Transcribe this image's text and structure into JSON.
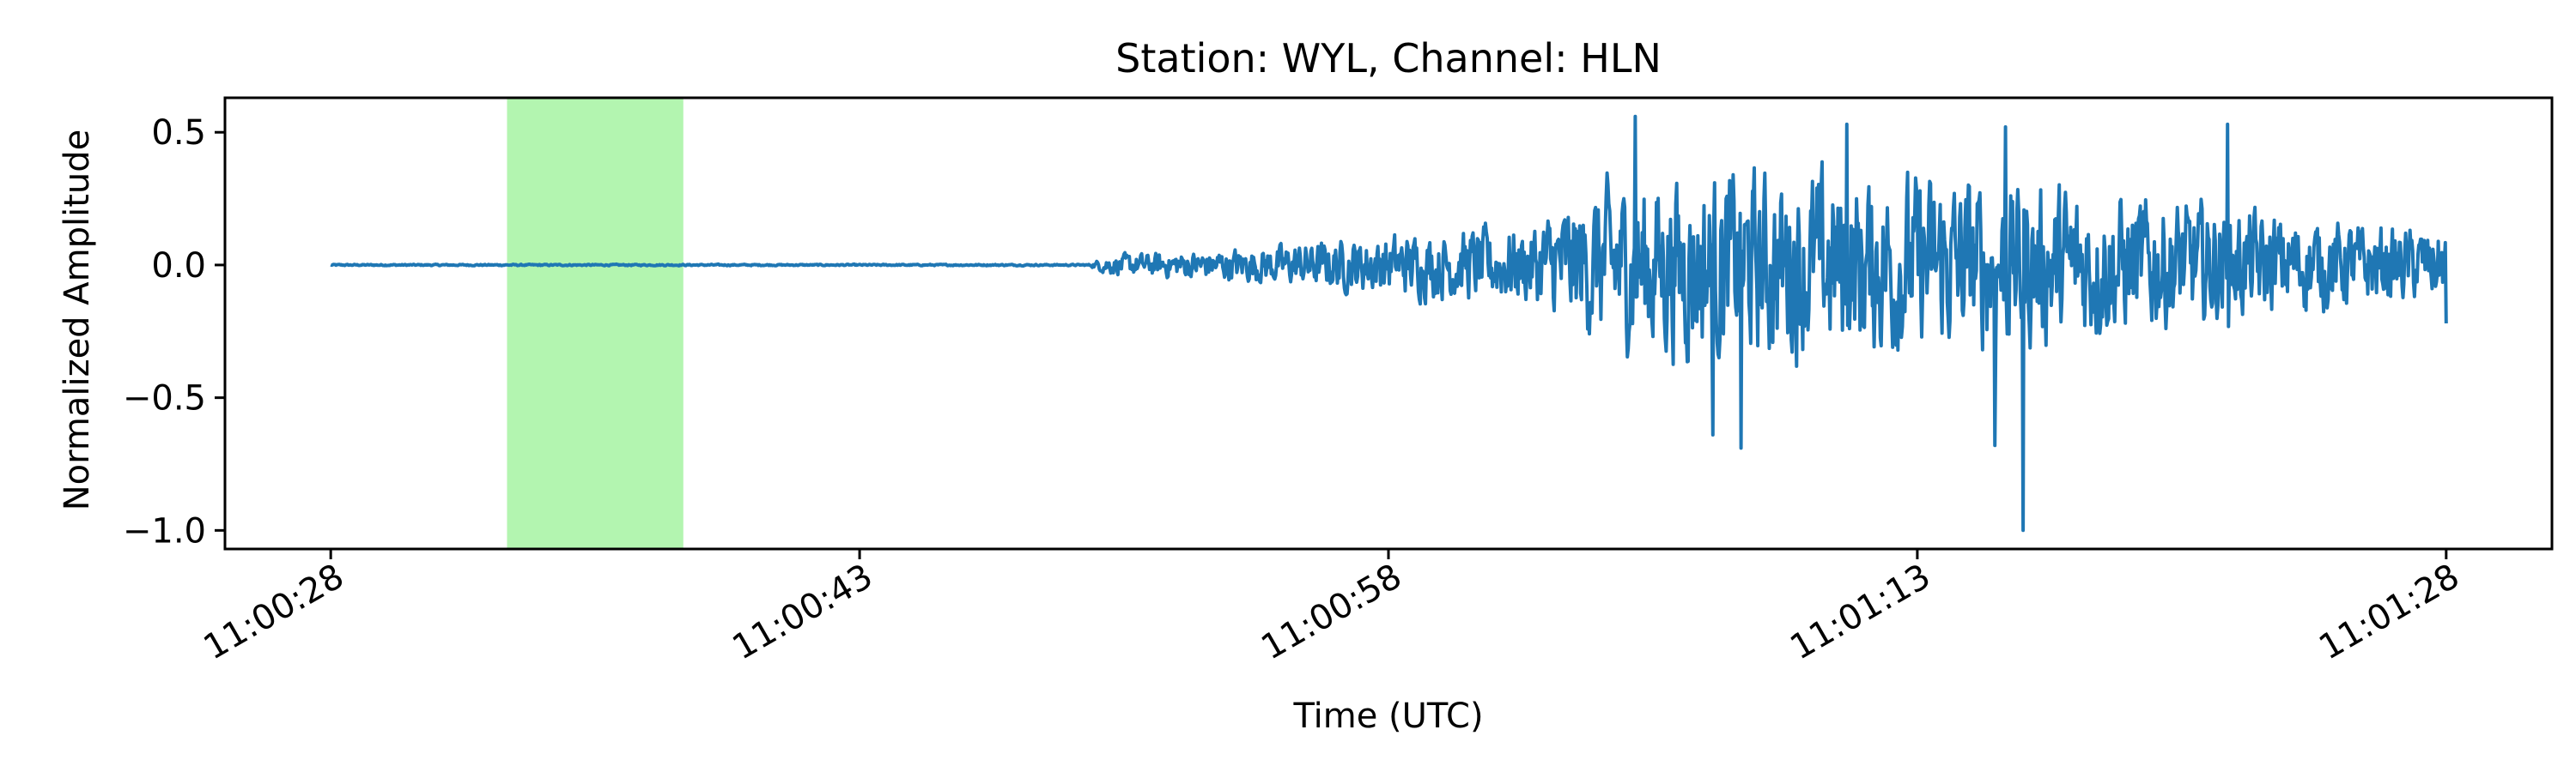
{
  "chart_data": {
    "type": "line",
    "title": "Station: WYL, Channel: HLN",
    "xlabel": "Time (UTC)",
    "ylabel": "Normalized Amplitude",
    "x_unit": "seconds from 11:00:28 UTC",
    "xlim": [
      -3,
      63
    ],
    "ylim": [
      -1.07,
      0.63
    ],
    "x_ticks": [
      {
        "value": 0,
        "label": "11:00:28"
      },
      {
        "value": 15,
        "label": "11:00:43"
      },
      {
        "value": 30,
        "label": "11:00:58"
      },
      {
        "value": 45,
        "label": "11:01:13"
      },
      {
        "value": 60,
        "label": "11:01:28"
      }
    ],
    "y_ticks": [
      {
        "value": 0.5,
        "label": "0.5"
      },
      {
        "value": 0.0,
        "label": "0.0"
      },
      {
        "value": -0.5,
        "label": "−0.5"
      },
      {
        "value": -1.0,
        "label": "−1.0"
      }
    ],
    "highlight_span": {
      "x_start": 5.0,
      "x_end": 10.0,
      "color": "#b3f5b0"
    },
    "grid": false,
    "legend": "none",
    "series": [
      {
        "color": "#1f77b4",
        "x_range": [
          0,
          60
        ],
        "envelope": [
          {
            "t": 0,
            "amp": 0.004
          },
          {
            "t": 21.5,
            "amp": 0.004
          },
          {
            "t": 22.0,
            "amp": 0.05
          },
          {
            "t": 26,
            "amp": 0.09
          },
          {
            "t": 30,
            "amp": 0.16
          },
          {
            "t": 34,
            "amp": 0.22
          },
          {
            "t": 36,
            "amp": 0.42
          },
          {
            "t": 38,
            "amp": 0.5
          },
          {
            "t": 42,
            "amp": 0.5
          },
          {
            "t": 48,
            "amp": 0.45
          },
          {
            "t": 52,
            "amp": 0.35
          },
          {
            "t": 56,
            "amp": 0.25
          },
          {
            "t": 60,
            "amp": 0.18
          }
        ],
        "peaks": [
          {
            "t": 37.0,
            "y": 0.56
          },
          {
            "t": 40.0,
            "y": -0.69
          },
          {
            "t": 43.0,
            "y": 0.53
          },
          {
            "t": 47.5,
            "y": 0.52
          },
          {
            "t": 48.0,
            "y": -1.0
          },
          {
            "t": 47.2,
            "y": -0.68
          },
          {
            "t": 53.8,
            "y": 0.53
          },
          {
            "t": 39.2,
            "y": -0.64
          },
          {
            "t": 60.0,
            "y": -0.22
          }
        ]
      }
    ]
  }
}
